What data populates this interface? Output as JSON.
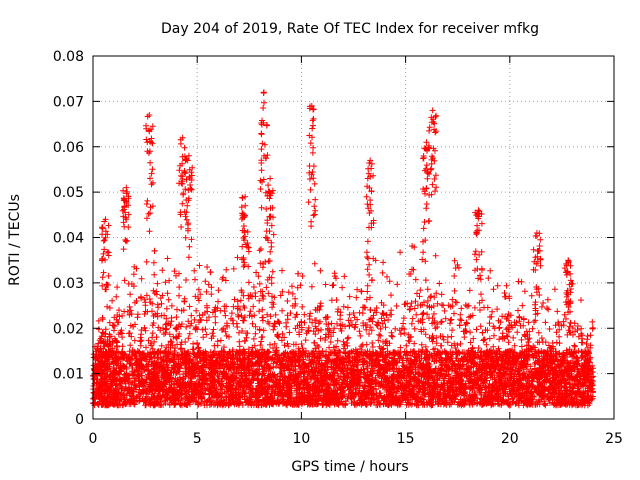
{
  "chart_data": {
    "type": "scatter",
    "title": "Day 204 of 2019, Rate Of TEC Index for receiver mfkg",
    "xlabel": "GPS time / hours",
    "ylabel": "ROTI / TECUs",
    "xlim": [
      0,
      25
    ],
    "ylim": [
      0,
      0.08
    ],
    "xticks": [
      0,
      5,
      10,
      15,
      20,
      25
    ],
    "xtick_labels": [
      "0",
      "5",
      "10",
      "15",
      "20",
      "25"
    ],
    "yticks": [
      0,
      0.01,
      0.02,
      0.03,
      0.04,
      0.05,
      0.06,
      0.07,
      0.08
    ],
    "ytick_labels": [
      "0",
      "0.01",
      "0.02",
      "0.03",
      "0.04",
      "0.05",
      "0.06",
      "0.07",
      "0.08"
    ],
    "grid": true,
    "marker": "+",
    "color": "#ff0000",
    "series": [
      {
        "name": "ROTI",
        "x_range": [
          0,
          24
        ],
        "baseline_range": [
          0.003,
          0.015
        ],
        "notable_peaks": [
          {
            "x": 0.6,
            "y": 0.044
          },
          {
            "x": 1.6,
            "y": 0.051
          },
          {
            "x": 2.7,
            "y": 0.067
          },
          {
            "x": 4.3,
            "y": 0.062
          },
          {
            "x": 4.6,
            "y": 0.058
          },
          {
            "x": 7.3,
            "y": 0.049
          },
          {
            "x": 8.2,
            "y": 0.072
          },
          {
            "x": 8.5,
            "y": 0.053
          },
          {
            "x": 10.5,
            "y": 0.069
          },
          {
            "x": 13.3,
            "y": 0.057
          },
          {
            "x": 16.0,
            "y": 0.061
          },
          {
            "x": 16.3,
            "y": 0.068
          },
          {
            "x": 18.5,
            "y": 0.046
          },
          {
            "x": 21.3,
            "y": 0.041
          },
          {
            "x": 22.8,
            "y": 0.035
          }
        ],
        "envelope": [
          {
            "x": 0,
            "y": 0.022
          },
          {
            "x": 1,
            "y": 0.03
          },
          {
            "x": 2,
            "y": 0.035
          },
          {
            "x": 3,
            "y": 0.038
          },
          {
            "x": 4,
            "y": 0.036
          },
          {
            "x": 5,
            "y": 0.035
          },
          {
            "x": 6,
            "y": 0.033
          },
          {
            "x": 7,
            "y": 0.038
          },
          {
            "x": 8,
            "y": 0.038
          },
          {
            "x": 9,
            "y": 0.036
          },
          {
            "x": 10,
            "y": 0.033
          },
          {
            "x": 11,
            "y": 0.035
          },
          {
            "x": 12,
            "y": 0.033
          },
          {
            "x": 13,
            "y": 0.036
          },
          {
            "x": 14,
            "y": 0.036
          },
          {
            "x": 15,
            "y": 0.038
          },
          {
            "x": 16,
            "y": 0.04
          },
          {
            "x": 17,
            "y": 0.036
          },
          {
            "x": 18,
            "y": 0.034
          },
          {
            "x": 19,
            "y": 0.033
          },
          {
            "x": 20,
            "y": 0.031
          },
          {
            "x": 21,
            "y": 0.03
          },
          {
            "x": 22,
            "y": 0.029
          },
          {
            "x": 23,
            "y": 0.03
          },
          {
            "x": 24,
            "y": 0.022
          }
        ]
      }
    ]
  }
}
